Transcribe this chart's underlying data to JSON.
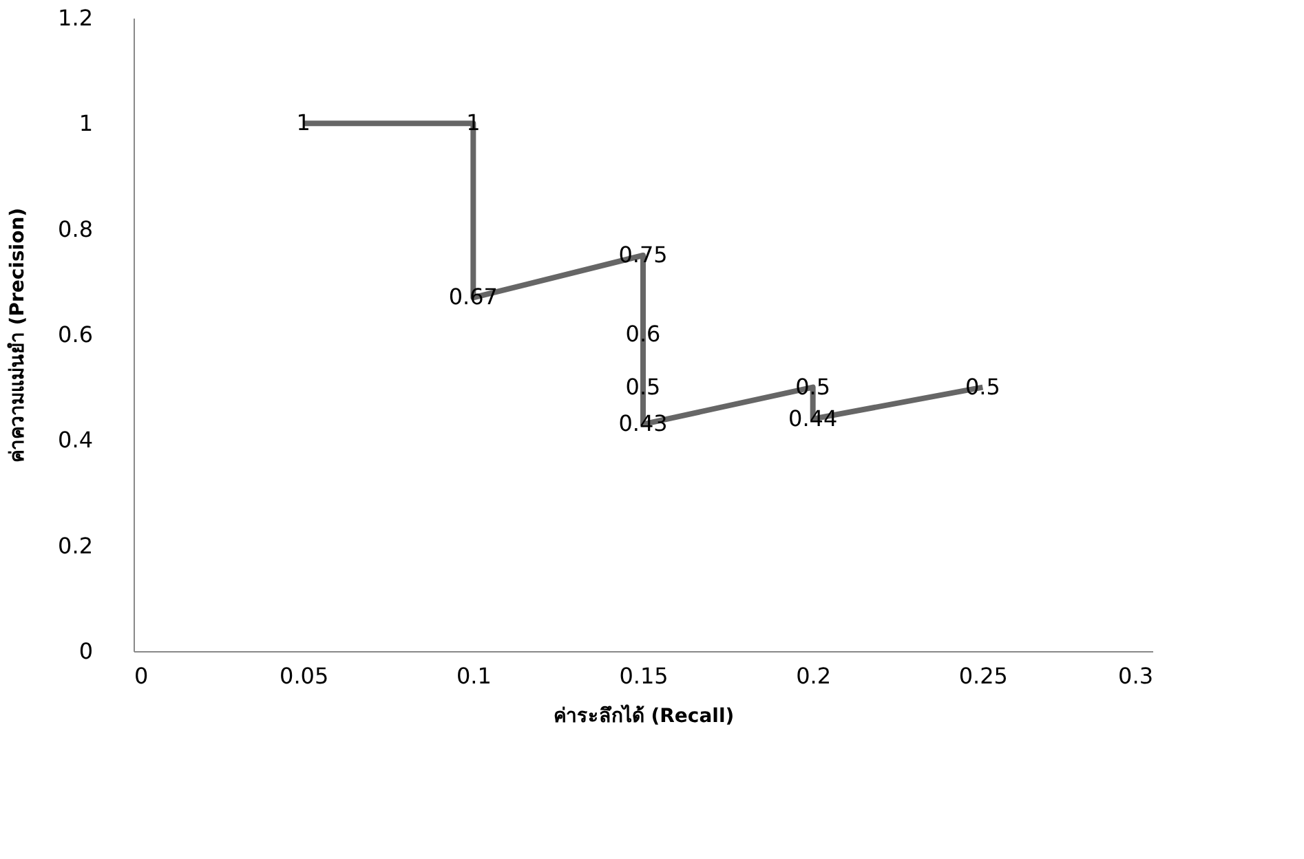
{
  "chart_data": {
    "type": "line",
    "xlabel": "ค่าระลึกได้ (Recall)",
    "ylabel": "ค่าความแม่นยำ (Precision)",
    "x": [
      0.05,
      0.1,
      0.1,
      0.15,
      0.15,
      0.15,
      0.15,
      0.2,
      0.2,
      0.25
    ],
    "series": [
      {
        "color": "#666666",
        "values": [
          1,
          1,
          0.67,
          0.75,
          0.6,
          0.5,
          0.43,
          0.5,
          0.44,
          0.5
        ]
      }
    ],
    "data_labels": true,
    "xlim": [
      0,
      0.3
    ],
    "xticks": [
      0,
      0.05,
      0.1,
      0.15,
      0.2,
      0.25,
      0.3
    ],
    "ylim": [
      0,
      1.2
    ],
    "yticks": [
      0,
      0.2,
      0.4,
      0.6,
      0.8,
      1,
      1.2
    ],
    "grid": false,
    "legend": false,
    "marker": "none",
    "line_style": "solid"
  }
}
